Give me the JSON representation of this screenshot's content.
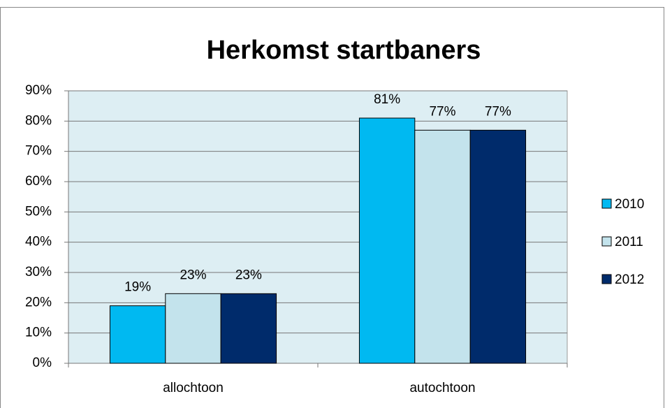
{
  "chart_data": {
    "type": "bar",
    "title": "Herkomst startbaners",
    "categories": [
      "allochtoon",
      "autochtoon"
    ],
    "series": [
      {
        "name": "2010",
        "color": "#00b9f1",
        "values": [
          19,
          81
        ],
        "value_labels": [
          "19%",
          "81%"
        ]
      },
      {
        "name": "2011",
        "color": "#c3e3ec",
        "values": [
          23,
          77
        ],
        "value_labels": [
          "23%",
          "77%"
        ]
      },
      {
        "name": "2012",
        "color": "#002b6b",
        "values": [
          23,
          77
        ],
        "value_labels": [
          "23%",
          "77%"
        ]
      }
    ],
    "ylim": [
      0,
      90
    ],
    "yticks": [
      {
        "value": 0,
        "label": "0%"
      },
      {
        "value": 10,
        "label": "10%"
      },
      {
        "value": 20,
        "label": "20%"
      },
      {
        "value": 30,
        "label": "30%"
      },
      {
        "value": 40,
        "label": "40%"
      },
      {
        "value": 50,
        "label": "50%"
      },
      {
        "value": 60,
        "label": "60%"
      },
      {
        "value": 70,
        "label": "70%"
      },
      {
        "value": 80,
        "label": "80%"
      },
      {
        "value": 90,
        "label": "90%"
      }
    ],
    "grid": true,
    "legend": "right",
    "plot_background": "#ddeef3"
  }
}
